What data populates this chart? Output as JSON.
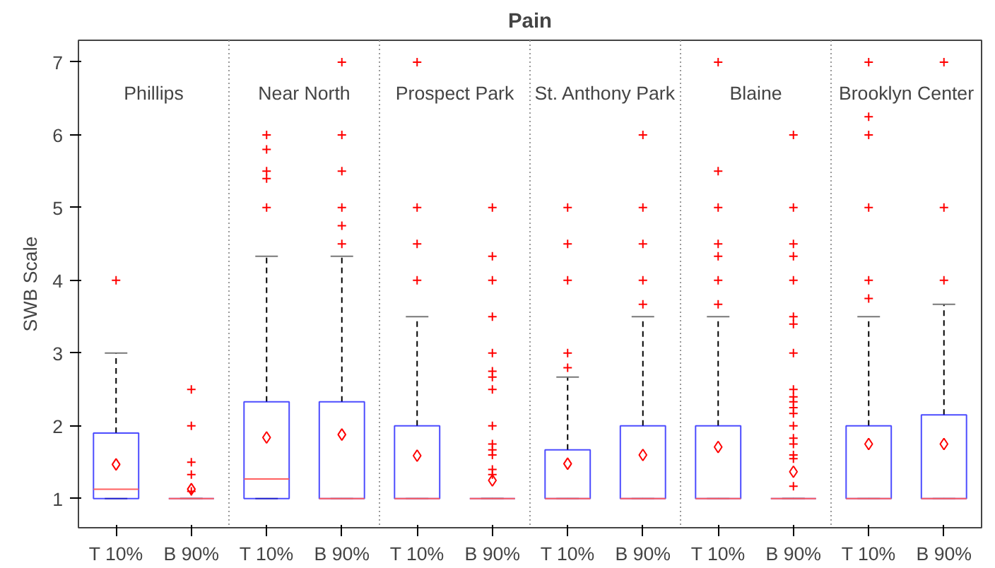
{
  "chart_data": {
    "type": "box",
    "title": "Pain",
    "ylabel": "SWB Scale",
    "categories": [
      "T 10%",
      "B 90%",
      "T 10%",
      "B 90%",
      "T 10%",
      "B 90%",
      "T 10%",
      "B 90%",
      "T 10%",
      "B 90%",
      "T 10%",
      "B 90%"
    ],
    "annotations": [
      "Phillips",
      "Near North",
      "Prospect Park",
      "St. Anthony Park",
      "Blaine",
      "Brooklyn Center"
    ],
    "color": "#0000ff",
    "boxes": [
      {
        "low": 1,
        "q1": 1,
        "median": 1.13,
        "q3": 1.9,
        "high": 3,
        "mean": 1.47,
        "outliers": [
          4
        ]
      },
      {
        "low": 1,
        "q1": 1,
        "median": 1,
        "q3": 1,
        "high": 1,
        "mean": 1.13,
        "outliers": [
          2.5,
          2,
          1.5,
          1.33,
          1.1
        ]
      },
      {
        "low": 1,
        "q1": 1,
        "median": 1.27,
        "q3": 2.33,
        "high": 4.33,
        "mean": 1.84,
        "outliers": [
          5,
          5.4,
          5.5,
          5.8,
          6
        ]
      },
      {
        "low": 1,
        "q1": 1,
        "median": 1,
        "q3": 2.33,
        "high": 4.33,
        "mean": 1.88,
        "outliers": [
          4.5,
          4.75,
          5,
          5.5,
          6,
          7
        ]
      },
      {
        "low": 1,
        "q1": 1,
        "median": 1,
        "q3": 2,
        "high": 3.5,
        "mean": 1.59,
        "outliers": [
          4,
          4.5,
          5,
          7
        ]
      },
      {
        "low": 1,
        "q1": 1,
        "median": 1,
        "q3": 1,
        "high": 1,
        "mean": 1.25,
        "outliers": [
          5,
          4.33,
          4,
          3.5,
          3,
          2.75,
          2.67,
          2.5,
          2,
          1.75,
          1.67,
          1.6,
          1.4,
          1.33
        ]
      },
      {
        "low": 1,
        "q1": 1,
        "median": 1,
        "q3": 1.67,
        "high": 2.67,
        "mean": 1.48,
        "outliers": [
          2.8,
          3,
          4,
          4.5,
          5
        ]
      },
      {
        "low": 1,
        "q1": 1,
        "median": 1,
        "q3": 2,
        "high": 3.5,
        "mean": 1.6,
        "outliers": [
          3.67,
          4,
          4.5,
          5,
          6
        ]
      },
      {
        "low": 1,
        "q1": 1,
        "median": 1,
        "q3": 2,
        "high": 3.5,
        "mean": 1.71,
        "outliers": [
          3.67,
          4,
          4.33,
          4.5,
          5,
          5.5,
          7
        ]
      },
      {
        "low": 1,
        "q1": 1,
        "median": 1,
        "q3": 1,
        "high": 1,
        "mean": 1.37,
        "outliers": [
          6,
          5,
          4.5,
          4.33,
          4,
          3.5,
          3.4,
          3,
          2.5,
          2.4,
          2.33,
          2.25,
          2.17,
          2,
          1.83,
          1.75,
          1.6,
          1.55,
          1.17
        ]
      },
      {
        "low": 1,
        "q1": 1,
        "median": 1,
        "q3": 2,
        "high": 3.5,
        "mean": 1.75,
        "outliers": [
          3.75,
          4,
          5,
          6,
          6.25,
          7
        ]
      },
      {
        "low": 1,
        "q1": 1,
        "median": 1,
        "q3": 2.15,
        "high": 3.67,
        "mean": 1.75,
        "outliers": [
          4,
          5,
          7
        ]
      }
    ],
    "ylim": [
      0.6,
      7.3
    ],
    "yticks": [
      1,
      2,
      3,
      4,
      5,
      6,
      7
    ],
    "grid": false
  }
}
